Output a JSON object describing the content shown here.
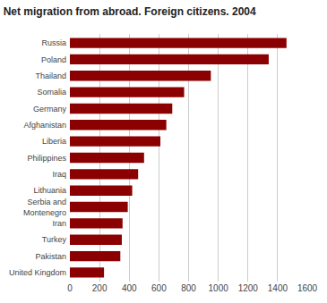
{
  "chart_data": {
    "type": "bar",
    "orientation": "horizontal",
    "title": "Net migration from abroad. Foreign citizens. 2004",
    "categories": [
      "United Kingdom",
      "Pakistan",
      "Turkey",
      "Iran",
      "Serbia and\nMontenegro",
      "Lithuania",
      "Iraq",
      "Philippines",
      "Liberia",
      "Afghanistan",
      "Germany",
      "Somalia",
      "Thailand",
      "Poland",
      "Russia"
    ],
    "values": [
      230,
      340,
      350,
      355,
      390,
      420,
      460,
      500,
      610,
      650,
      690,
      770,
      950,
      1340,
      1460
    ],
    "color": "#8B0000",
    "xlim": [
      0,
      1600
    ],
    "xticks": [
      0,
      200,
      400,
      600,
      800,
      1000,
      1200,
      1400,
      1600
    ],
    "grid": true
  }
}
